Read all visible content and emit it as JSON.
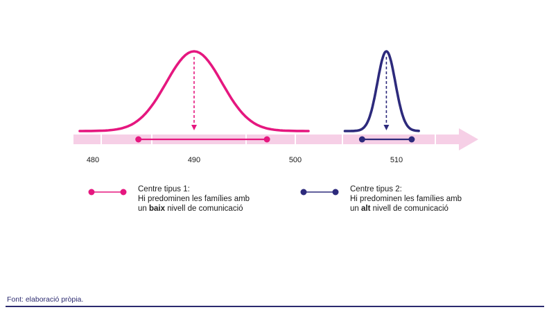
{
  "chart_data": {
    "type": "line",
    "x_ticks": [
      480,
      490,
      500,
      510
    ],
    "xlim": [
      478.5,
      519
    ],
    "series": [
      {
        "name": "Centre tipus 1",
        "color": "#e5177f",
        "mean": 490,
        "range": [
          484.5,
          497.2
        ],
        "curve_extent": [
          478.7,
          501.3
        ]
      },
      {
        "name": "Centre tipus 2",
        "color": "#2d2a7c",
        "mean": 509,
        "range": [
          506.6,
          511.5
        ],
        "curve_extent": [
          504.9,
          512.2
        ]
      }
    ],
    "axis_color": "#f6cfe6"
  },
  "legend": [
    {
      "title": "Centre tipus 1:",
      "line2": "Hi predominen les famílies amb",
      "line3_pre": "un ",
      "line3_bold": "baix",
      "line3_post": " nivell de comunicació"
    },
    {
      "title": "Centre tipus 2:",
      "line2": "Hi predominen les famílies amb",
      "line3_pre": "un ",
      "line3_bold": "alt",
      "line3_post": " nivell de comunicació"
    }
  ],
  "source": "Font: elaboració pròpia."
}
